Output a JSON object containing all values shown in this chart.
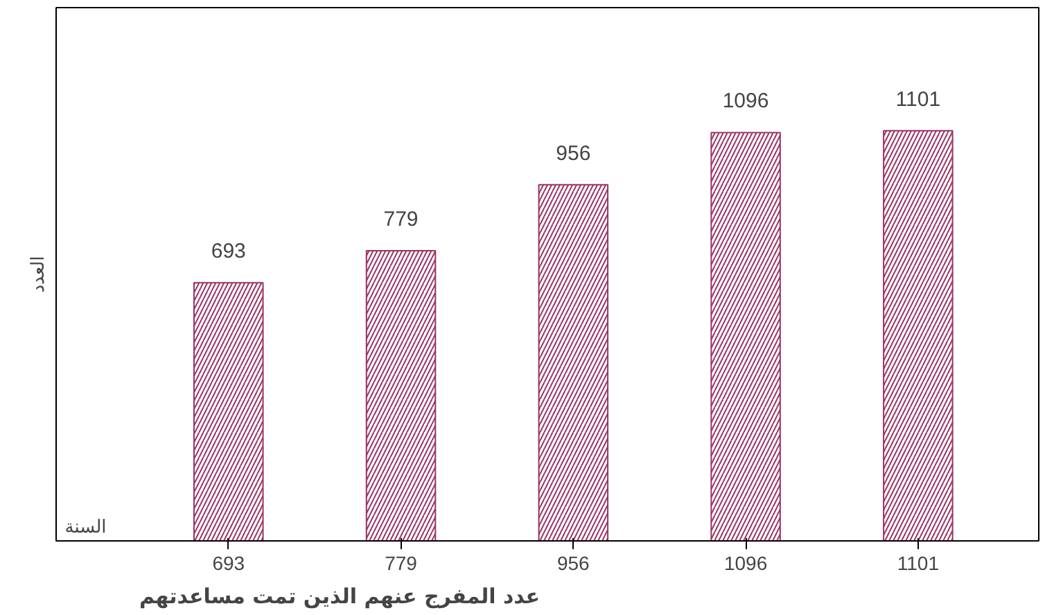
{
  "chart_data": {
    "type": "bar",
    "title": "عدد المفرج عنهم الذين تمت مساعدتهم",
    "ylabel": "العدد",
    "xlabel": "السنة",
    "categories": [
      "693",
      "779",
      "956",
      "1096",
      "1101"
    ],
    "values": [
      693,
      779,
      956,
      1096,
      1101
    ],
    "color": "#993366",
    "data_labels": true,
    "grid": false
  }
}
